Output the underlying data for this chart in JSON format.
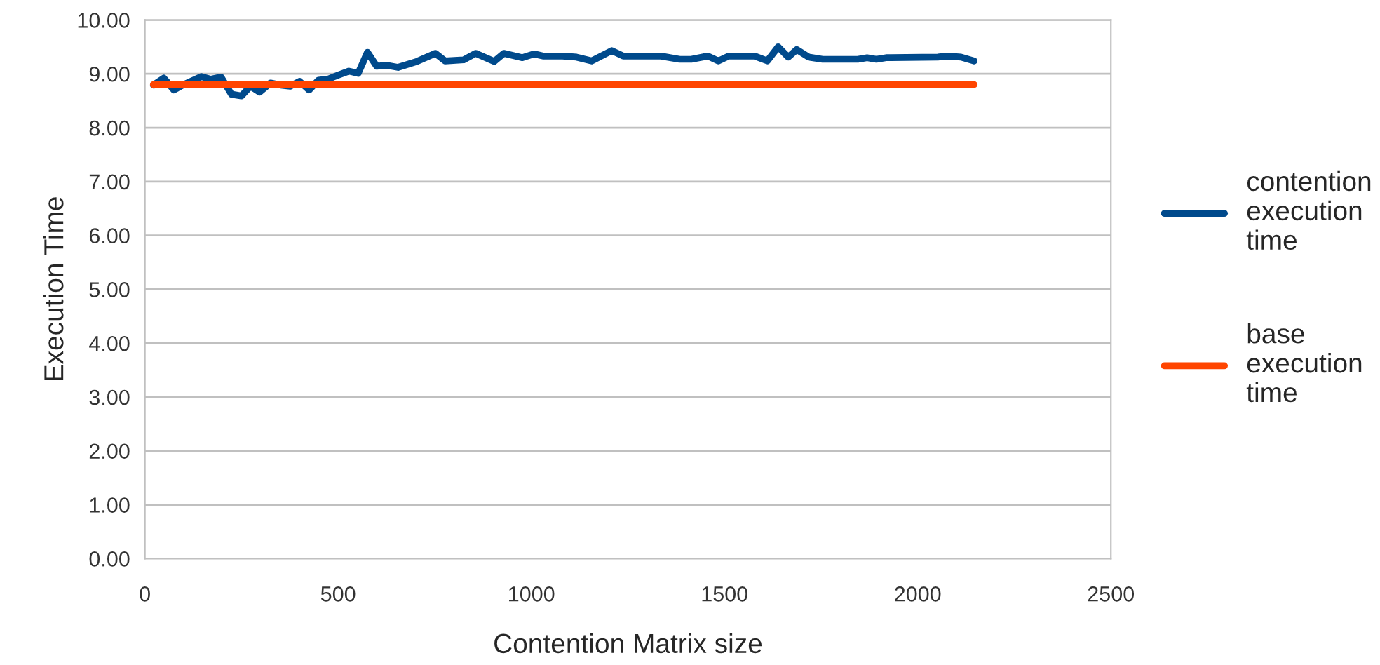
{
  "chart_data": {
    "type": "line",
    "xlabel": "Contention Matrix size",
    "ylabel": "Execution Time",
    "xlim": [
      0,
      2500
    ],
    "xticks": [
      0,
      500,
      1000,
      1500,
      2000,
      2500
    ],
    "ylim": [
      0,
      10
    ],
    "yticks": [
      {
        "value": 0,
        "label": "0.00"
      },
      {
        "value": 1,
        "label": "1.00"
      },
      {
        "value": 2,
        "label": "2.00"
      },
      {
        "value": 3,
        "label": "3.00"
      },
      {
        "value": 4,
        "label": "4.00"
      },
      {
        "value": 5,
        "label": "5.00"
      },
      {
        "value": 6,
        "label": "6.00"
      },
      {
        "value": 7,
        "label": "7.00"
      },
      {
        "value": 8,
        "label": "8.00"
      },
      {
        "value": 9,
        "label": "9.00"
      },
      {
        "value": 10,
        "label": "10.00"
      }
    ],
    "grid": "y",
    "legend": "right",
    "marker": "none",
    "line_style": "solid",
    "series": [
      {
        "name": "contention execution time",
        "color": "#004a8c",
        "x": [
          22,
          49,
          75,
          103,
          146,
          170,
          197,
          224,
          250,
          273,
          297,
          325,
          352,
          376,
          400,
          425,
          449,
          473,
          498,
          528,
          552,
          576,
          600,
          625,
          655,
          704,
          752,
          777,
          825,
          856,
          904,
          929,
          977,
          1007,
          1032,
          1081,
          1117,
          1156,
          1208,
          1238,
          1335,
          1384,
          1414,
          1457,
          1484,
          1511,
          1578,
          1611,
          1639,
          1665,
          1687,
          1718,
          1754,
          1845,
          1869,
          1893,
          1918,
          2052,
          2076,
          2112,
          2146
        ],
        "values": [
          8.79,
          8.92,
          8.7,
          8.81,
          8.95,
          8.9,
          8.94,
          8.62,
          8.59,
          8.77,
          8.66,
          8.83,
          8.79,
          8.77,
          8.86,
          8.7,
          8.88,
          8.9,
          8.97,
          9.05,
          9.01,
          9.4,
          9.14,
          9.16,
          9.12,
          9.23,
          9.38,
          9.24,
          9.26,
          9.38,
          9.23,
          9.38,
          9.3,
          9.37,
          9.33,
          9.33,
          9.31,
          9.24,
          9.43,
          9.33,
          9.33,
          9.27,
          9.27,
          9.33,
          9.24,
          9.33,
          9.33,
          9.24,
          9.5,
          9.31,
          9.45,
          9.31,
          9.27,
          9.27,
          9.3,
          9.27,
          9.3,
          9.31,
          9.33,
          9.31,
          9.24
        ]
      },
      {
        "name": "base execution time",
        "color": "#ff4500",
        "x": [
          22,
          2146
        ],
        "values": [
          8.8,
          8.8
        ]
      }
    ]
  }
}
